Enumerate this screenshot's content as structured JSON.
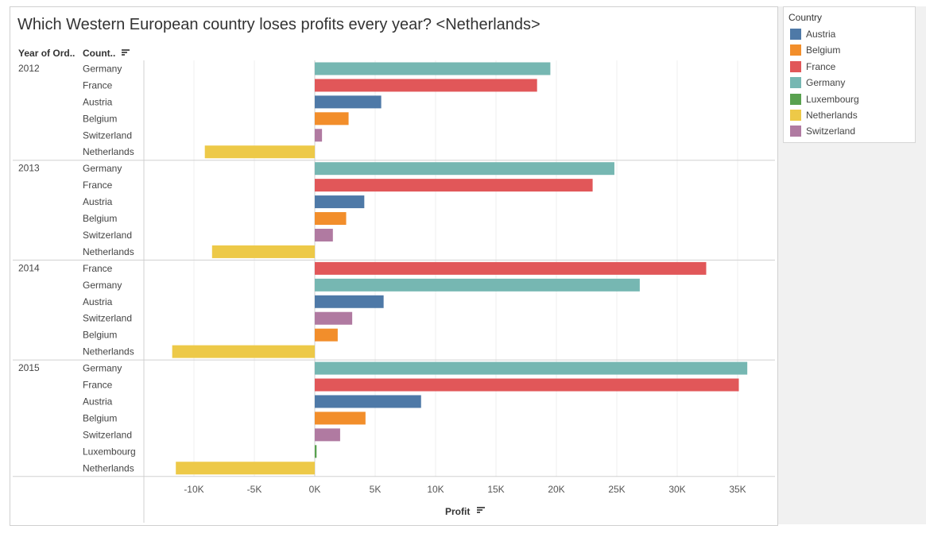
{
  "title": "Which Western European country loses profits every year? <Netherlands>",
  "headers": {
    "year": "Year of Ord..",
    "country": "Count.."
  },
  "axis_label": "Profit",
  "legend": {
    "title": "Country",
    "items": [
      {
        "label": "Austria",
        "color": "#4e79a7"
      },
      {
        "label": "Belgium",
        "color": "#f28e2b"
      },
      {
        "label": "France",
        "color": "#e15759"
      },
      {
        "label": "Germany",
        "color": "#76b7b2"
      },
      {
        "label": "Luxembourg",
        "color": "#59a14f"
      },
      {
        "label": "Netherlands",
        "color": "#edc948"
      },
      {
        "label": "Switzerland",
        "color": "#b07aa1"
      }
    ]
  },
  "chart_data": {
    "type": "bar",
    "orientation": "horizontal",
    "title": "Which Western European country loses profits every year? <Netherlands>",
    "xlabel": "Profit",
    "xlim": [
      -14000,
      38000
    ],
    "ticks": [
      {
        "value": -10000,
        "label": "-10K"
      },
      {
        "value": -5000,
        "label": "-5K"
      },
      {
        "value": 0,
        "label": "0K"
      },
      {
        "value": 5000,
        "label": "5K"
      },
      {
        "value": 10000,
        "label": "10K"
      },
      {
        "value": 15000,
        "label": "15K"
      },
      {
        "value": 20000,
        "label": "20K"
      },
      {
        "value": 25000,
        "label": "25K"
      },
      {
        "value": 30000,
        "label": "30K"
      },
      {
        "value": 35000,
        "label": "35K"
      }
    ],
    "groups": [
      {
        "year": "2012",
        "rows": [
          {
            "country": "Germany",
            "value": 19500
          },
          {
            "country": "France",
            "value": 18400
          },
          {
            "country": "Austria",
            "value": 5500
          },
          {
            "country": "Belgium",
            "value": 2800
          },
          {
            "country": "Switzerland",
            "value": 600
          },
          {
            "country": "Netherlands",
            "value": -9100
          }
        ]
      },
      {
        "year": "2013",
        "rows": [
          {
            "country": "Germany",
            "value": 24800
          },
          {
            "country": "France",
            "value": 23000
          },
          {
            "country": "Austria",
            "value": 4100
          },
          {
            "country": "Belgium",
            "value": 2600
          },
          {
            "country": "Switzerland",
            "value": 1500
          },
          {
            "country": "Netherlands",
            "value": -8500
          }
        ]
      },
      {
        "year": "2014",
        "rows": [
          {
            "country": "France",
            "value": 32400
          },
          {
            "country": "Germany",
            "value": 26900
          },
          {
            "country": "Austria",
            "value": 5700
          },
          {
            "country": "Switzerland",
            "value": 3100
          },
          {
            "country": "Belgium",
            "value": 1900
          },
          {
            "country": "Netherlands",
            "value": -11800
          }
        ]
      },
      {
        "year": "2015",
        "rows": [
          {
            "country": "Germany",
            "value": 35800
          },
          {
            "country": "France",
            "value": 35100
          },
          {
            "country": "Austria",
            "value": 8800
          },
          {
            "country": "Belgium",
            "value": 4200
          },
          {
            "country": "Switzerland",
            "value": 2100
          },
          {
            "country": "Luxembourg",
            "value": 150
          },
          {
            "country": "Netherlands",
            "value": -11500
          }
        ]
      }
    ]
  }
}
